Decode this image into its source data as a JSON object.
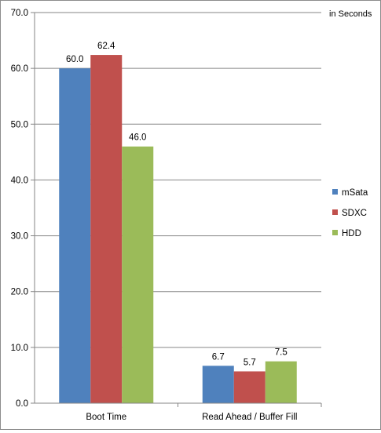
{
  "chart_data": {
    "type": "bar",
    "unit_note": "in Seconds",
    "categories": [
      "Boot Time",
      "Read Ahead / Buffer Fill"
    ],
    "series": [
      {
        "name": "mSata",
        "color": "#4f81bd",
        "values": [
          60.0,
          6.7
        ]
      },
      {
        "name": "SDXC",
        "color": "#c0504d",
        "values": [
          62.4,
          5.7
        ]
      },
      {
        "name": "HDD",
        "color": "#9bbb59",
        "values": [
          46.0,
          7.5
        ]
      }
    ],
    "ylim": [
      0,
      70
    ],
    "yticks": [
      "0.0",
      "10.0",
      "20.0",
      "30.0",
      "40.0",
      "50.0",
      "60.0",
      "70.0"
    ],
    "data_labels": [
      [
        "60.0",
        "6.7"
      ],
      [
        "62.4",
        "5.7"
      ],
      [
        "46.0",
        "7.5"
      ]
    ],
    "grid": true,
    "legend": "right"
  }
}
